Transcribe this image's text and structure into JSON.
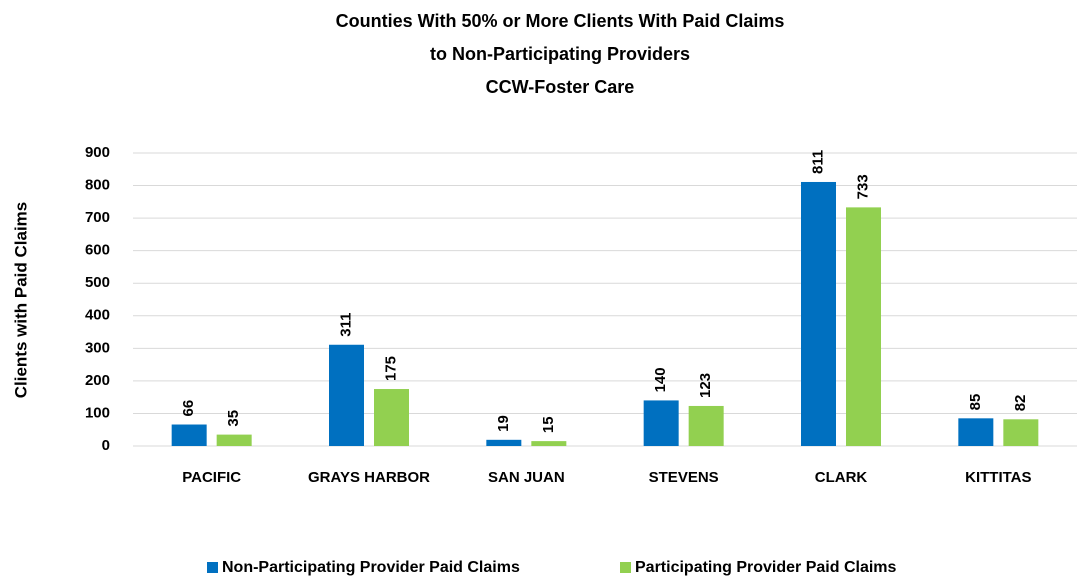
{
  "chart_data": {
    "type": "bar",
    "title": [
      "Counties With 50% or More Clients With Paid Claims",
      "to Non-Participating Providers",
      "CCW-Foster Care"
    ],
    "ylabel": "Clients with Paid Claims",
    "categories": [
      "PACIFIC",
      "GRAYS HARBOR",
      "SAN JUAN",
      "STEVENS",
      "CLARK",
      "KITTITAS"
    ],
    "series": [
      {
        "name": "Non-Participating Provider Paid Claims",
        "color": "#0070c0",
        "values": [
          66,
          311,
          19,
          140,
          811,
          85
        ]
      },
      {
        "name": "Participating Provider Paid Claims",
        "color": "#92d050",
        "values": [
          35,
          175,
          15,
          123,
          733,
          82
        ]
      }
    ],
    "ylim": [
      0,
      900
    ],
    "yticks": [
      0,
      100,
      200,
      300,
      400,
      500,
      600,
      700,
      800,
      900
    ],
    "grid": true,
    "legend": "bottom"
  }
}
